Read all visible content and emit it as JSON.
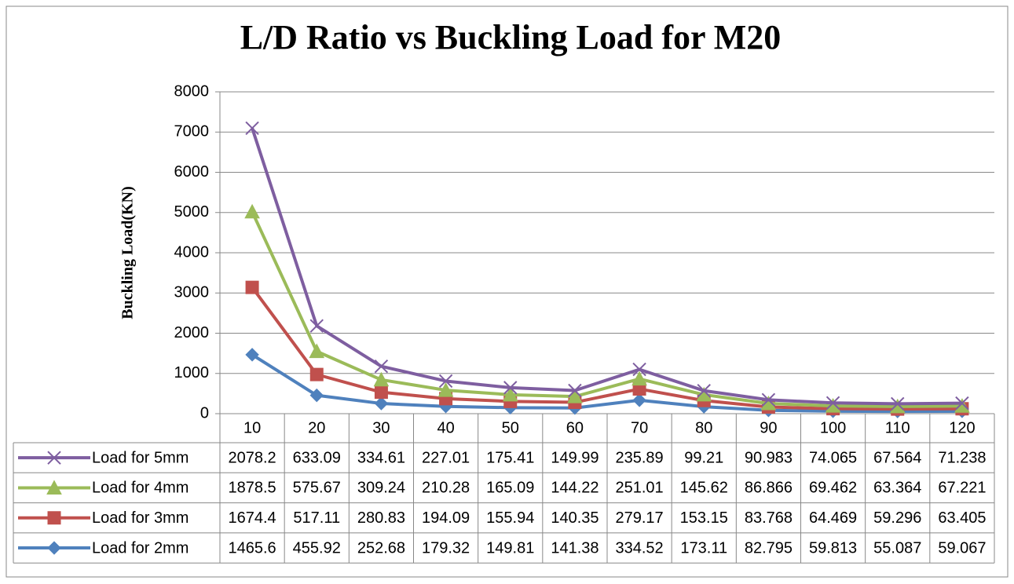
{
  "chart_data": {
    "type": "line",
    "stacked": true,
    "title": "L/D Ratio vs Buckling Load for M20",
    "y_label": "Buckling Load(KN)",
    "categories": [
      10,
      20,
      30,
      40,
      50,
      60,
      70,
      80,
      90,
      100,
      110,
      120
    ],
    "ylim": [
      0,
      8000
    ],
    "yticks": [
      0,
      1000,
      2000,
      3000,
      4000,
      5000,
      6000,
      7000,
      8000
    ],
    "grid": true,
    "data_table": true,
    "series": [
      {
        "name": "Load for 5mm",
        "color": "#7e5ea0",
        "marker": "x",
        "values": [
          2078.2,
          633.09,
          334.61,
          227.01,
          175.41,
          149.99,
          235.89,
          99.21,
          90.983,
          74.065,
          67.564,
          71.238
        ]
      },
      {
        "name": "Load for 4mm",
        "color": "#9bbb59",
        "marker": "triangle",
        "values": [
          1878.5,
          575.67,
          309.24,
          210.28,
          165.09,
          144.22,
          251.01,
          145.62,
          86.866,
          69.462,
          63.364,
          67.221
        ]
      },
      {
        "name": "Load for 3mm",
        "color": "#c0504d",
        "marker": "square",
        "values": [
          1674.4,
          517.11,
          280.83,
          194.09,
          155.94,
          140.35,
          279.17,
          153.15,
          83.768,
          64.469,
          59.296,
          63.405
        ]
      },
      {
        "name": "Load for 2mm",
        "color": "#4f81bd",
        "marker": "diamond",
        "values": [
          1465.6,
          455.92,
          252.68,
          179.32,
          149.81,
          141.38,
          334.52,
          173.11,
          82.795,
          59.813,
          55.087,
          59.067
        ]
      }
    ]
  }
}
